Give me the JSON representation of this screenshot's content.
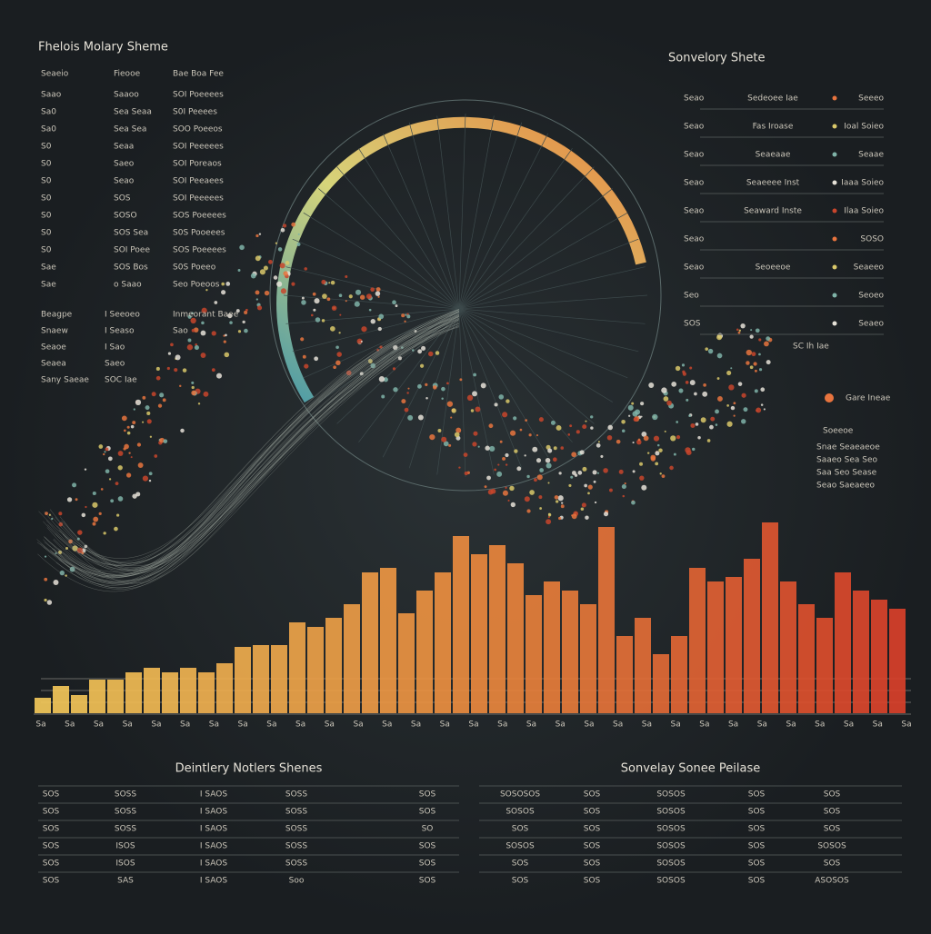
{
  "header": {
    "title": "Fhelois Molary Sheme"
  },
  "left_list": {
    "columns": [
      "Seaeio",
      "Fieooe",
      "Bae Boa Fee"
    ],
    "rows": [
      [
        "Saao",
        "Saaoo",
        "SOI Poeeees"
      ],
      [
        "Sa0",
        "Sea Seaa",
        "S0I Peeees"
      ],
      [
        "Sa0",
        "Sea Sea",
        "SOO Poeeos"
      ],
      [
        "S0",
        "Seaa",
        "SOI Peeeees"
      ],
      [
        "S0",
        "Saeo",
        "SOI Poreaos"
      ],
      [
        "S0",
        "Seao",
        "SOI Peeaees"
      ],
      [
        "S0",
        "SOS",
        "SOI Peeeees"
      ],
      [
        "S0",
        "SOSO",
        "SOS Poeeees"
      ],
      [
        "S0",
        "SOS Sea",
        "S0S Pooeees"
      ],
      [
        "S0",
        "SOI Poee",
        "SOS Poeeees"
      ],
      [
        "Sae",
        "SOS Bos",
        "S0S Poeeo"
      ],
      [
        "Sae",
        "o Saao",
        "Seo Poeoos"
      ]
    ],
    "notes": [
      [
        "Beagpe",
        "I Seeoeo",
        "Inmeorant Baee"
      ],
      [
        "Snaew",
        "I Seaso",
        "Sao"
      ],
      [
        "Seaoe",
        "I Sao",
        ""
      ],
      [
        "Seaea",
        "Saeo",
        ""
      ],
      [
        "Sany Saeae",
        "SOC Iae",
        ""
      ]
    ]
  },
  "right_panel": {
    "title": "Sonvelory Shete",
    "rows": [
      [
        "Seao",
        "Sedeoee Iae",
        "Seeeo"
      ],
      [
        "Seao",
        "Fas Iroase",
        "Ioal Soieo"
      ],
      [
        "Seao",
        "Seaeaae",
        "Seaae"
      ],
      [
        "Seao",
        "Seaeeee Inst",
        "Iaaa Soieo"
      ],
      [
        "Seao",
        "Seaward Inste",
        "Ilaa Soieo"
      ],
      [
        "Seao",
        "",
        "SOSO"
      ],
      [
        "Seao",
        "Seoeeoe",
        "Seaeeo"
      ],
      [
        "Seo",
        "",
        "Seoeo"
      ],
      [
        "SOS",
        "",
        "Seaeo"
      ]
    ]
  },
  "annotations": [
    "SC Ih Iae",
    "Gare Ineae"
  ],
  "callout": {
    "title": "Soeeoe",
    "rows": [
      "Snae Seaeaeoe",
      "Saaeo Sea Seo",
      "Saa Seo Sease",
      "Seao Saeaeeo"
    ]
  },
  "chart_data": {
    "type": "bar",
    "categories": [
      null,
      null,
      null,
      null,
      null,
      null,
      null,
      null,
      null,
      null,
      null,
      null,
      null,
      null,
      null,
      null,
      null,
      null,
      null,
      null,
      null,
      null,
      null,
      null,
      null,
      null,
      null,
      null,
      null,
      null,
      null,
      null,
      null,
      null,
      null,
      null,
      null,
      null,
      null,
      null,
      null,
      null,
      null,
      null,
      null,
      null,
      null,
      null
    ],
    "values": [
      17,
      30,
      20,
      37,
      37,
      45,
      50,
      45,
      50,
      45,
      55,
      73,
      75,
      75,
      100,
      95,
      105,
      120,
      155,
      160,
      110,
      135,
      155,
      195,
      175,
      185,
      165,
      130,
      145,
      135,
      120,
      205,
      85,
      105,
      65,
      85,
      160,
      145,
      150,
      170,
      210,
      145,
      120,
      105,
      155,
      135,
      125,
      115
    ],
    "ylim": [
      0,
      230
    ],
    "colors": [
      "#f2c85a",
      "#e98a3e",
      "#d8402a"
    ],
    "x_labels": [
      "Sa",
      "Sa",
      "Sa",
      "Sa",
      "Sa",
      "Sa",
      "Sa",
      "Sa",
      "Sa",
      "Sa",
      "Sa",
      "Sa",
      "Sa",
      "Sa",
      "Sa",
      "Sa",
      "Sa",
      "Sa",
      "Sa",
      "Sa",
      "Sa",
      "Sa",
      "Sa",
      "Sa",
      "Sa",
      "Sa",
      "Sa",
      "Sa",
      "Sa",
      "Sa",
      "Sa"
    ]
  },
  "tables": [
    {
      "title": "Deintlery Notlers Shenes",
      "rows": [
        [
          "SOS",
          "SOSS",
          "I SAOS",
          "SOSS",
          "SOS"
        ],
        [
          "SOS",
          "SOSS",
          "I SAOS",
          "SOSS",
          "SOS"
        ],
        [
          "SOS",
          "SOSS",
          "I SAOS",
          "SOSS",
          "SO"
        ],
        [
          "SOS",
          "ISOS",
          "I SAOS",
          "SOSS",
          "SOS"
        ],
        [
          "SOS",
          "ISOS",
          "I SAOS",
          "SOSS",
          "SOS"
        ],
        [
          "SOS",
          "SAS",
          "I SAOS",
          "Soo",
          "SOS"
        ]
      ]
    },
    {
      "title": "Sonvelay Sonee Peilase",
      "rows": [
        [
          "SOSOSOS",
          "SOS",
          "SOSOS",
          "SOS",
          "SOS"
        ],
        [
          "SOSOS",
          "SOS",
          "SOSOS",
          "SOS",
          "SOS"
        ],
        [
          "SOS",
          "SOS",
          "SOSOS",
          "SOS",
          "SOS"
        ],
        [
          "SOSOS",
          "SOS",
          "SOSOS",
          "SOS",
          "SOSOS"
        ],
        [
          "SOS",
          "SOS",
          "SOSOS",
          "SOS",
          "SOS"
        ],
        [
          "SOS",
          "SOS",
          "SOSOS",
          "SOS",
          "ASOSOS"
        ]
      ]
    }
  ]
}
